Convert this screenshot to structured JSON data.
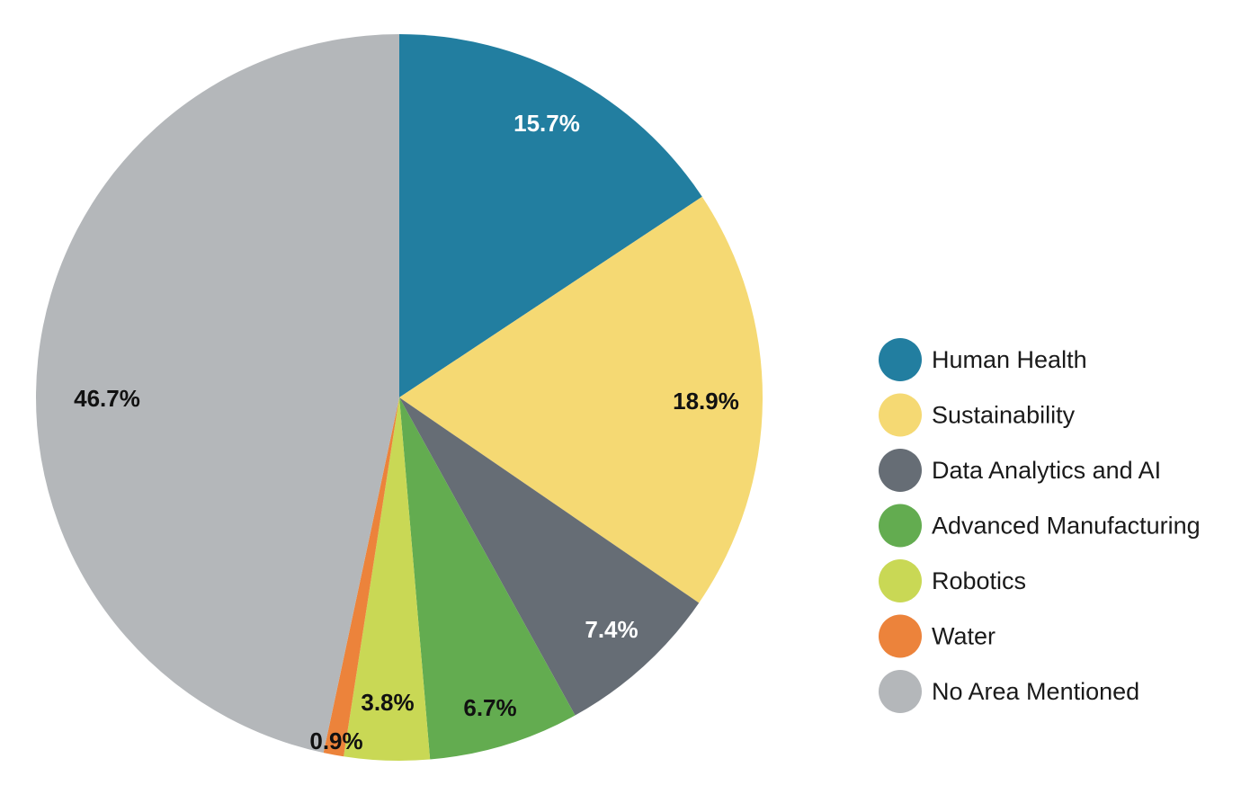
{
  "chart_data": {
    "type": "pie",
    "title": "",
    "legend_position": "right",
    "start_angle_deg": 0,
    "direction": "clockwise",
    "slices": [
      {
        "name": "Human Health",
        "value": 15.7,
        "label": "15.7%",
        "color": "#227ea0",
        "label_color": "#ffffff"
      },
      {
        "name": "Sustainability",
        "value": 18.9,
        "label": "18.9%",
        "color": "#f5d973",
        "label_color": "#111111"
      },
      {
        "name": "Data Analytics and AI",
        "value": 7.4,
        "label": "7.4%",
        "color": "#666d75",
        "label_color": "#ffffff"
      },
      {
        "name": "Advanced Manufacturing",
        "value": 6.7,
        "label": "6.7%",
        "color": "#63ac50",
        "label_color": "#111111"
      },
      {
        "name": "Robotics",
        "value": 3.8,
        "label": "3.8%",
        "color": "#c9d855",
        "label_color": "#111111"
      },
      {
        "name": "Water",
        "value": 0.9,
        "label": "0.9%",
        "color": "#ec833b",
        "label_color": "#111111"
      },
      {
        "name": "No Area Mentioned",
        "value": 46.7,
        "label": "46.7%",
        "color": "#b4b7ba",
        "label_color": "#111111"
      }
    ]
  }
}
